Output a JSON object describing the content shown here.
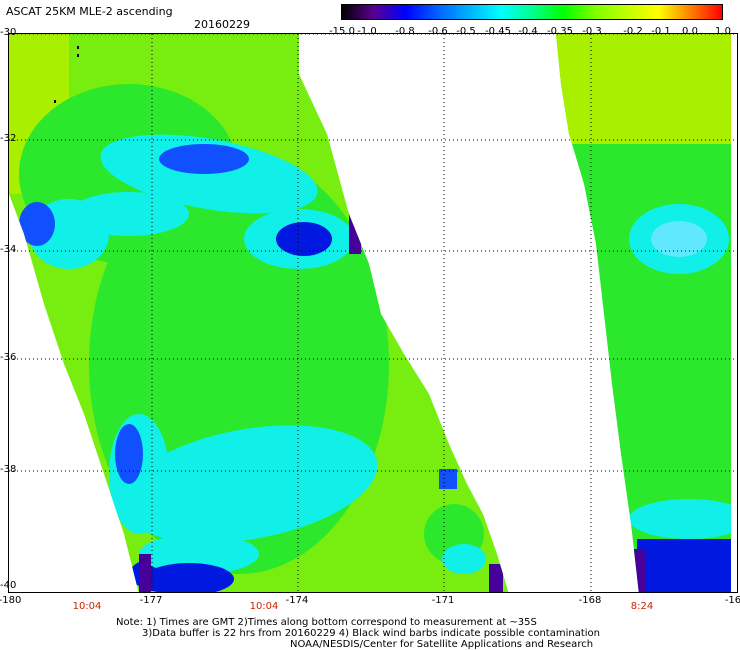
{
  "header": {
    "title": "ASCAT 25KM MLE-2 ascending",
    "date": "20160229"
  },
  "colorbar": {
    "labels": [
      "-15.0",
      "-1.0",
      "-0.8",
      "-0.6",
      "-0.5",
      "-0.45",
      "-0.4",
      "-0.35",
      "-0.3",
      "-0.2",
      "-0.1",
      "0.0",
      "1.0"
    ],
    "colors": [
      "#000000",
      "#5a0090",
      "#0000ff",
      "#0060ff",
      "#00b0ff",
      "#00ffff",
      "#00ff90",
      "#00ff00",
      "#80ff00",
      "#c0ff00",
      "#ffff00",
      "#ff8000",
      "#ff0000"
    ]
  },
  "map": {
    "lat_labels": [
      "-30",
      "-32",
      "-34",
      "-36",
      "-38",
      "-40"
    ],
    "lon_labels": [
      "-180",
      "-177",
      "-174",
      "-171",
      "-168",
      "-16"
    ],
    "time_labels": [
      "10:04",
      "10:04",
      "8:24"
    ],
    "swath_colors": {
      "base": "#78ee10",
      "green": "#2ce82c",
      "cyan": "#10f0e8",
      "blue": "#1050ff",
      "navy": "#0018e0",
      "purple": "#48009a",
      "lime": "#a8f000"
    }
  },
  "notes": [
    "Note: 1) Times are GMT 2)Times along bottom correspond to measurement at ~35S",
    "3)Data buffer is 22 hrs from 20160229 4) Black wind barbs indicate possible contamination",
    "NOAA/NESDIS/Center for Satellite Applications and Research"
  ]
}
